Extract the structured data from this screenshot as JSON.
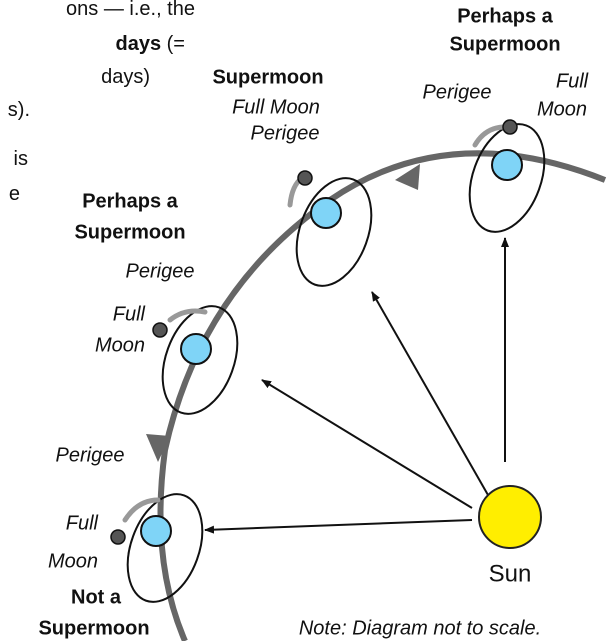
{
  "left_text": [
    [
      {
        "text": "ons — i.e., the",
        "bold": false
      }
    ],
    [
      {
        "text": "days",
        "bold": true
      },
      {
        "text": " (=",
        "bold": false
      }
    ],
    [
      {
        "text": "days)",
        "bold": false
      }
    ],
    [
      {
        "text": "s).",
        "bold": false
      }
    ],
    [
      {
        "text": "is",
        "bold": false
      }
    ],
    [
      {
        "text": "e",
        "bold": false
      }
    ]
  ],
  "positions": [
    {
      "title": [
        "Perhaps a",
        "Supermoon"
      ],
      "perigee": "Perigee",
      "full_moon": [
        "Full",
        "Moon"
      ]
    },
    {
      "title": [
        "Supermoon"
      ],
      "perigee": "Perigee",
      "full_moon": [
        "Full Moon"
      ]
    },
    {
      "title": [
        "Perhaps a",
        "Supermoon"
      ],
      "perigee": "Perigee",
      "full_moon": [
        "Full",
        "Moon"
      ]
    },
    {
      "title": [
        "Not a",
        "Supermoon"
      ],
      "perigee": "Perigee",
      "full_moon": [
        "Full",
        "Moon"
      ]
    }
  ],
  "sun": "Sun",
  "note": "Note: Diagram not to scale."
}
